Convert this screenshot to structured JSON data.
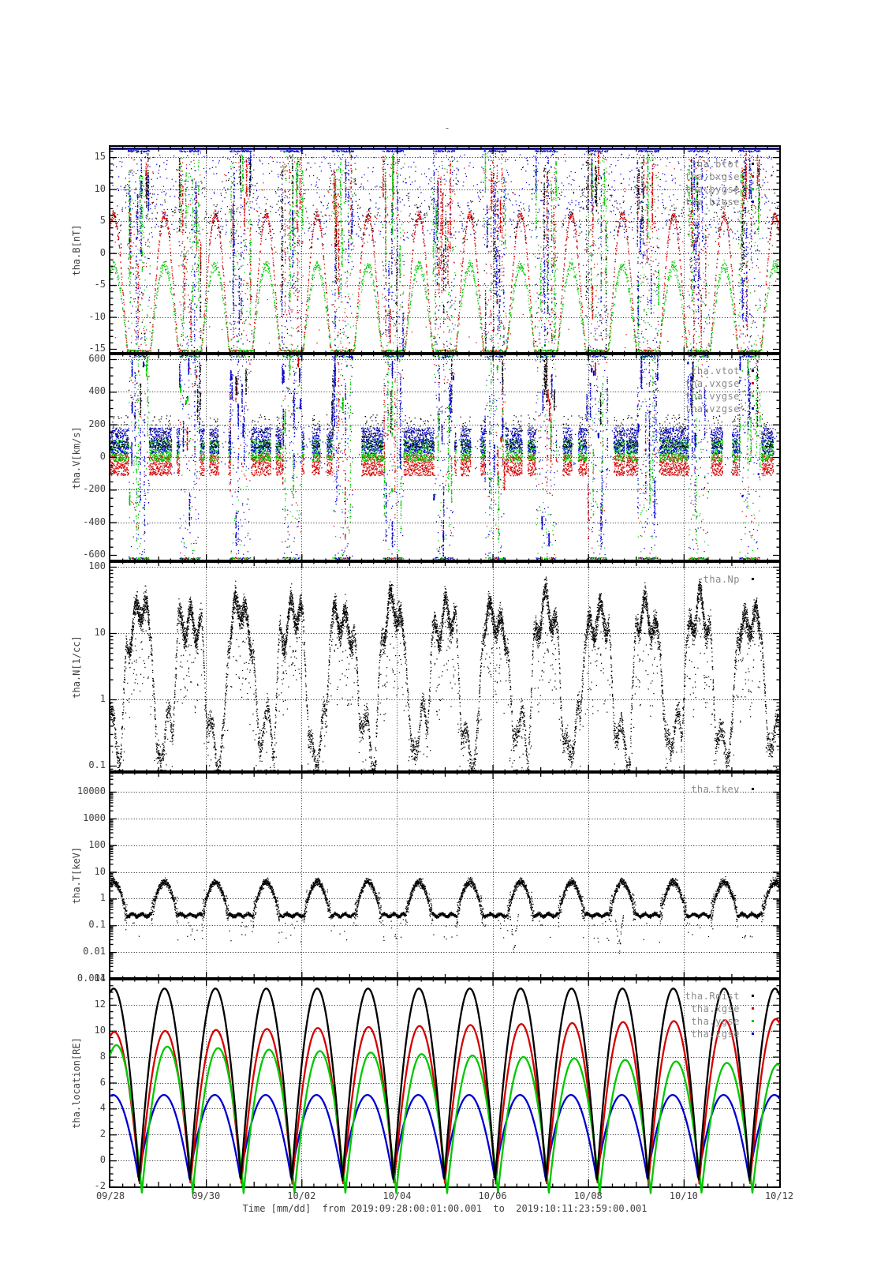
{
  "title": "-",
  "orbit": {
    "period_days": 1.065,
    "first_perigee_day": 0.6
  },
  "xaxis": {
    "tick_labels": [
      "09/28",
      "09/30",
      "10/02",
      "10/04",
      "10/06",
      "10/08",
      "10/10",
      "10/12"
    ],
    "major_every_days": 2,
    "mid_every_days": 1,
    "minor_every_days": 0.25,
    "range_days": [
      0,
      14
    ],
    "label": "Time [mm/dd]  from 2019:09:28:00:01:00.001  to  2019:10:11:23:59:00.001"
  },
  "colors": {
    "black": "#000000",
    "red": "#d40000",
    "green": "#00c800",
    "blue": "#0000cd",
    "navy_clip_line": "#000070",
    "legend_text": "#8a8a8a",
    "axis_text": "#404040"
  },
  "chart_data": [
    {
      "name": "tha.B",
      "type": "scatter",
      "ylabel": "tha.B[nT]",
      "yscale": "linear",
      "ylim": [
        -15.74,
        16.62
      ],
      "yminor_step": 1,
      "yticks": [
        {
          "v": 15,
          "label": "15"
        },
        {
          "v": 10,
          "label": "10"
        },
        {
          "v": 5,
          "label": "5"
        },
        {
          "v": 0,
          "label": "0"
        },
        {
          "v": -5,
          "label": "-5"
        },
        {
          "v": -10,
          "label": "-10"
        },
        {
          "v": -15,
          "label": "-15"
        }
      ],
      "ygrid": [
        15,
        10,
        5,
        0,
        -5,
        -10
      ],
      "legend": [
        {
          "label": "tha.btot",
          "color": "black"
        },
        {
          "label": "tha.bxgse",
          "color": "red"
        },
        {
          "label": "tha.bygse",
          "color": "green"
        },
        {
          "label": "tha.bzgse",
          "color": "blue"
        }
      ],
      "pattern": {
        "description": "Vertical mixed-color burst columns near each perigee spanning -15..15 nT; between bursts red bxgse forms smooth arcs from -15.5 up to ~+6 and green bygse arcs up to ~-2; blue clipped points form a navy line at +16 along the top edge.",
        "burst_phase_halfwidth": 0.22,
        "value_range": [
          -15.6,
          15.9
        ],
        "quiet_red_arc": {
          "base": -15.5,
          "amplitude": 21.5
        },
        "quiet_green_arc": {
          "base": -15.5,
          "amplitude": 13.5
        }
      }
    },
    {
      "name": "tha.V",
      "type": "scatter",
      "ylabel": "tha.V[km/s]",
      "yscale": "linear",
      "ylim": [
        -638.7,
        633.9
      ],
      "yminor_step": 50,
      "yticks": [
        {
          "v": 600,
          "label": "600"
        },
        {
          "v": 400,
          "label": "400"
        },
        {
          "v": 200,
          "label": "200"
        },
        {
          "v": 0,
          "label": "0"
        },
        {
          "v": -200,
          "label": "-200"
        },
        {
          "v": -400,
          "label": "-400"
        },
        {
          "v": -600,
          "label": "-600"
        }
      ],
      "ygrid": [
        600,
        400,
        200,
        0,
        -200,
        -400
      ],
      "legend": [
        {
          "label": "tha.vtot",
          "color": "black"
        },
        {
          "label": "tha.vxgse",
          "color": "red"
        },
        {
          "label": "tha.vygse",
          "color": "green"
        },
        {
          "label": "tha.vzgse",
          "color": "blue"
        }
      ],
      "pattern": {
        "description": "Quiet-time band blobs: black vtot 60..260, blue 20..180, green -25..105, red -115..15 km/s; perigee bursts are tall blue-dominated columns spanning +-600 with sparser green/red/black.",
        "band": {
          "black": [
            60,
            260
          ],
          "blue": [
            20,
            180
          ],
          "green": [
            -25,
            105
          ],
          "red": [
            -115,
            15
          ]
        },
        "burst_range": [
          -630,
          630
        ]
      }
    },
    {
      "name": "tha.N",
      "type": "scatter",
      "ylabel": "tha.N[1/cc]",
      "yscale": "log",
      "ylim_log10": [
        -1.095,
        2.083
      ],
      "yticks": [
        {
          "v": 100,
          "label": "100"
        },
        {
          "v": 10,
          "label": "10"
        },
        {
          "v": 1,
          "label": "1"
        },
        {
          "v": 0.1,
          "label": "0.1"
        }
      ],
      "ygrid": [
        100,
        10,
        1
      ],
      "legend": [
        {
          "label": "tha.Np",
          "color": "black"
        }
      ],
      "pattern": {
        "description": "Black density trace: dense high blobs 8..60 /cc around each perigee, sloping tails, low wiggly traces 0.1..0.6 /cc near apogee with occasional points clipped at 0.1.",
        "high_log10": [
          0.95,
          1.7
        ],
        "low_log10": [
          -0.85,
          -0.3
        ]
      }
    },
    {
      "name": "tha.T",
      "type": "scatter",
      "ylabel": "tha.T[keV]",
      "yscale": "log",
      "ylim_log10": [
        -3.0,
        4.738
      ],
      "yticks": [
        {
          "v": 10000,
          "label": "10000"
        },
        {
          "v": 1000,
          "label": "1000"
        },
        {
          "v": 100,
          "label": "100"
        },
        {
          "v": 10,
          "label": "10"
        },
        {
          "v": 1,
          "label": "1"
        },
        {
          "v": 0.1,
          "label": "0.1"
        },
        {
          "v": 0.01,
          "label": "0.01"
        },
        {
          "v": 0.001,
          "label": "0.001"
        }
      ],
      "ygrid": [
        10000,
        1000,
        100,
        10,
        1,
        0.1,
        0.01
      ],
      "legend": [
        {
          "label": "tha.tkev",
          "color": "black"
        }
      ],
      "pattern": {
        "description": "Black temperature alternates between rounded high arcs ~2..5 keV near apogee and dense flat segments ~0.22 keV near perigee, with vertical connecting scatter and occasional dips to ~0.02 keV.",
        "high_log10": [
          -0.15,
          0.66
        ],
        "low_log10": -0.62,
        "dip_days": [
          8.45,
          10.65
        ]
      }
    },
    {
      "name": "tha.location",
      "type": "line",
      "ylabel": "tha.location[RE]",
      "yscale": "linear",
      "ylim": [
        -2,
        14
      ],
      "yminor_step": 0.5,
      "yticks": [
        {
          "v": 14,
          "label": "14"
        },
        {
          "v": 12,
          "label": "12"
        },
        {
          "v": 10,
          "label": "10"
        },
        {
          "v": 8,
          "label": "8"
        },
        {
          "v": 6,
          "label": "6"
        },
        {
          "v": 4,
          "label": "4"
        },
        {
          "v": 2,
          "label": "2"
        },
        {
          "v": 0,
          "label": "0"
        },
        {
          "v": -2,
          "label": "-2"
        }
      ],
      "ygrid": [
        12,
        10,
        8,
        6,
        4,
        2,
        0
      ],
      "legend": [
        {
          "label": "tha.Rdist",
          "color": "black"
        },
        {
          "label": "tha.xgse",
          "color": "red"
        },
        {
          "label": "tha.ygse",
          "color": "green"
        },
        {
          "label": "tha.zgse",
          "color": "blue"
        }
      ],
      "series": [
        {
          "label": "tha.Rdist",
          "color": "black",
          "peak_start": 13.25,
          "peak_end": 13.25,
          "min": -1.55,
          "phase_offset": 0.0
        },
        {
          "label": "tha.xgse",
          "color": "red",
          "peak_start": 9.9,
          "peak_end": 10.9,
          "min": -1.8,
          "phase_offset": 0.012
        },
        {
          "label": "tha.ygse",
          "color": "green",
          "peak_start": 8.9,
          "peak_end": 7.4,
          "min": -2.55,
          "phase_offset": 0.055
        },
        {
          "label": "tha.zgse",
          "color": "blue",
          "peak_start": 5.05,
          "peak_end": 5.05,
          "min": -1.35,
          "phase_offset": -0.012
        }
      ]
    }
  ]
}
